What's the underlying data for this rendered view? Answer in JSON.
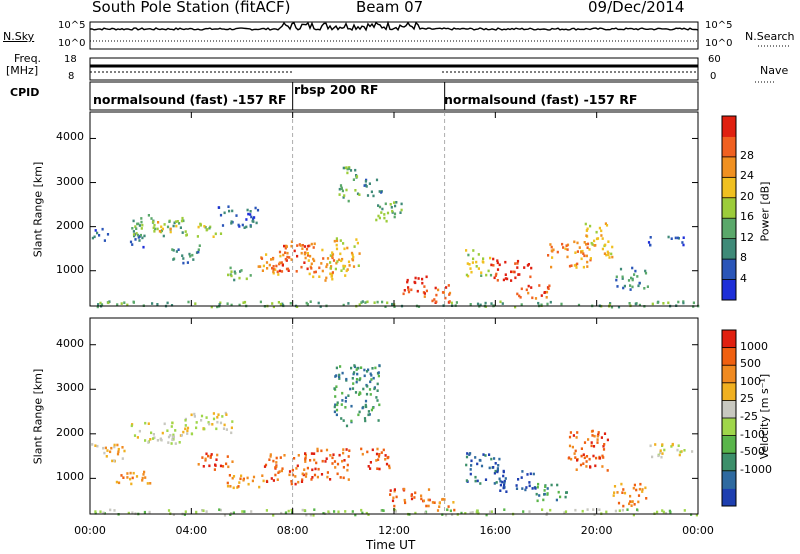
{
  "header": {
    "station": "South Pole Station (fitACF)",
    "beam": "Beam 07",
    "date": "09/Dec/2014"
  },
  "side_labels": {
    "nsky": "N.Sky",
    "freq": "Freq.",
    "freq_unit": "[MHz]",
    "cpid": "CPID",
    "nsearch": "N.Search",
    "nave": "Nave"
  },
  "small_axes": {
    "noise_left_top": "10^5",
    "noise_left_bottom": "10^0",
    "noise_right_top": "10^5",
    "noise_right_bottom": "10^0",
    "freq_top": "18",
    "freq_bottom": "8",
    "nave_top": "60",
    "nave_bottom": "0"
  },
  "cpid": [
    {
      "label": "normalsound (fast) -157 RF",
      "start_hour": 0,
      "end_hour": 8
    },
    {
      "label": "rbsp 200 RF",
      "start_hour": 8,
      "end_hour": 14
    },
    {
      "label": "normalsound (fast) -157 RF",
      "start_hour": 14,
      "end_hour": 24
    }
  ],
  "chart_data": [
    {
      "type": "heatmap",
      "title": "Power",
      "ylabel": "Slant Range [km]",
      "xlabel": "",
      "x_ticks": [
        "00:00",
        "04:00",
        "08:00",
        "12:00",
        "16:00",
        "20:00",
        "00:00"
      ],
      "y_ticks": [
        "1000",
        "2000",
        "3000",
        "4000"
      ],
      "xlim": [
        0,
        24
      ],
      "ylim": [
        200,
        4600
      ],
      "colorbar": {
        "label": "Power [dB]",
        "ticks": [
          "4",
          "8",
          "12",
          "16",
          "20",
          "24",
          "28"
        ],
        "colors": [
          "#1e2fd8",
          "#2a55b8",
          "#3f8a78",
          "#5aa86a",
          "#9ccc3a",
          "#f0c020",
          "#f09020",
          "#f06020",
          "#e02010"
        ]
      },
      "regions": [
        {
          "t0": 0.0,
          "t1": 0.7,
          "r0": 1700,
          "r1": 2000,
          "level": 1
        },
        {
          "t0": 1.4,
          "t1": 2.2,
          "r0": 1550,
          "r1": 1900,
          "level": 1
        },
        {
          "t0": 1.6,
          "t1": 3.8,
          "r0": 1800,
          "r1": 2300,
          "level": 3
        },
        {
          "t0": 2.4,
          "t1": 3.4,
          "r0": 1900,
          "r1": 2150,
          "level": 5
        },
        {
          "t0": 3.2,
          "t1": 4.3,
          "r0": 1200,
          "r1": 1600,
          "level": 2
        },
        {
          "t0": 4.2,
          "t1": 5.2,
          "r0": 1800,
          "r1": 2150,
          "level": 4
        },
        {
          "t0": 5.0,
          "t1": 6.6,
          "r0": 2000,
          "r1": 2500,
          "level": 1
        },
        {
          "t0": 5.3,
          "t1": 6.4,
          "r0": 800,
          "r1": 1100,
          "level": 3
        },
        {
          "t0": 6.6,
          "t1": 7.6,
          "r0": 850,
          "r1": 1400,
          "level": 6
        },
        {
          "t0": 7.2,
          "t1": 8.9,
          "r0": 1000,
          "r1": 1700,
          "level": 7
        },
        {
          "t0": 8.4,
          "t1": 9.6,
          "r0": 800,
          "r1": 1500,
          "level": 6
        },
        {
          "t0": 9.4,
          "t1": 10.6,
          "r0": 900,
          "r1": 1800,
          "level": 5
        },
        {
          "t0": 9.8,
          "t1": 10.6,
          "r0": 2600,
          "r1": 3400,
          "level": 3
        },
        {
          "t0": 10.7,
          "t1": 11.5,
          "r0": 2700,
          "r1": 3100,
          "level": 2
        },
        {
          "t0": 11.2,
          "t1": 12.4,
          "r0": 2100,
          "r1": 2600,
          "level": 3
        },
        {
          "t0": 12.3,
          "t1": 13.4,
          "r0": 500,
          "r1": 900,
          "level": 8
        },
        {
          "t0": 13.0,
          "t1": 14.2,
          "r0": 300,
          "r1": 700,
          "level": 7
        },
        {
          "t0": 14.8,
          "t1": 15.8,
          "r0": 900,
          "r1": 1500,
          "level": 4
        },
        {
          "t0": 15.8,
          "t1": 17.4,
          "r0": 800,
          "r1": 1300,
          "level": 8
        },
        {
          "t0": 16.8,
          "t1": 18.4,
          "r0": 400,
          "r1": 700,
          "level": 7
        },
        {
          "t0": 18.0,
          "t1": 19.8,
          "r0": 1100,
          "r1": 1700,
          "level": 6
        },
        {
          "t0": 19.5,
          "t1": 20.6,
          "r0": 1300,
          "r1": 2100,
          "level": 5
        },
        {
          "t0": 20.7,
          "t1": 22.0,
          "r0": 600,
          "r1": 1100,
          "level": 2
        },
        {
          "t0": 22.0,
          "t1": 23.5,
          "r0": 1600,
          "r1": 1800,
          "level": 1
        },
        {
          "t0": 0.0,
          "t1": 24.0,
          "r0": 200,
          "r1": 330,
          "level": 3
        }
      ]
    },
    {
      "type": "heatmap",
      "title": "Velocity",
      "ylabel": "Slant Range [km]",
      "xlabel": "Time UT",
      "x_ticks": [
        "00:00",
        "04:00",
        "08:00",
        "12:00",
        "16:00",
        "20:00",
        "00:00"
      ],
      "y_ticks": [
        "1000",
        "2000",
        "3000",
        "4000"
      ],
      "xlim": [
        0,
        24
      ],
      "ylim": [
        200,
        4600
      ],
      "colorbar": {
        "label": "Velocity [m s⁻¹]",
        "ticks": [
          "1000",
          "500",
          "100",
          "25",
          "-25",
          "-100",
          "-500",
          "-1000"
        ],
        "colors": [
          "#1e3fb0",
          "#2f6aa0",
          "#3c8f6a",
          "#59b54a",
          "#9fd64a",
          "#c8c8c0",
          "#f0b020",
          "#f08a20",
          "#f06010",
          "#e02010"
        ]
      },
      "regions": [
        {
          "t0": 0.0,
          "t1": 1.4,
          "r0": 1400,
          "r1": 1800,
          "level": 6
        },
        {
          "t0": 0.8,
          "t1": 2.4,
          "r0": 900,
          "r1": 1200,
          "level": 7
        },
        {
          "t0": 1.6,
          "t1": 3.6,
          "r0": 1800,
          "r1": 2300,
          "level": 5
        },
        {
          "t0": 3.6,
          "t1": 5.6,
          "r0": 2000,
          "r1": 2500,
          "level": 5
        },
        {
          "t0": 4.2,
          "t1": 5.6,
          "r0": 1200,
          "r1": 1600,
          "level": 8
        },
        {
          "t0": 5.2,
          "t1": 7.0,
          "r0": 800,
          "r1": 1100,
          "level": 7
        },
        {
          "t0": 6.8,
          "t1": 8.6,
          "r0": 900,
          "r1": 1600,
          "level": 8
        },
        {
          "t0": 8.6,
          "t1": 10.2,
          "r0": 1000,
          "r1": 1700,
          "level": 8
        },
        {
          "t0": 9.6,
          "t1": 11.4,
          "r0": 2200,
          "r1": 3600,
          "level": 2
        },
        {
          "t0": 10.6,
          "t1": 11.8,
          "r0": 1200,
          "r1": 1700,
          "level": 8
        },
        {
          "t0": 11.8,
          "t1": 13.4,
          "r0": 400,
          "r1": 800,
          "level": 8
        },
        {
          "t0": 13.2,
          "t1": 14.4,
          "r0": 300,
          "r1": 600,
          "level": 7
        },
        {
          "t0": 14.8,
          "t1": 16.2,
          "r0": 900,
          "r1": 1600,
          "level": 1
        },
        {
          "t0": 16.0,
          "t1": 17.6,
          "r0": 700,
          "r1": 1200,
          "level": 0
        },
        {
          "t0": 17.4,
          "t1": 18.8,
          "r0": 500,
          "r1": 900,
          "level": 2
        },
        {
          "t0": 18.8,
          "t1": 20.4,
          "r0": 1200,
          "r1": 2100,
          "level": 8
        },
        {
          "t0": 20.6,
          "t1": 22.0,
          "r0": 400,
          "r1": 900,
          "level": 7
        },
        {
          "t0": 22.0,
          "t1": 23.8,
          "r0": 1500,
          "r1": 1800,
          "level": 5
        },
        {
          "t0": 0.0,
          "t1": 24.0,
          "r0": 200,
          "r1": 330,
          "level": 4
        }
      ]
    }
  ]
}
